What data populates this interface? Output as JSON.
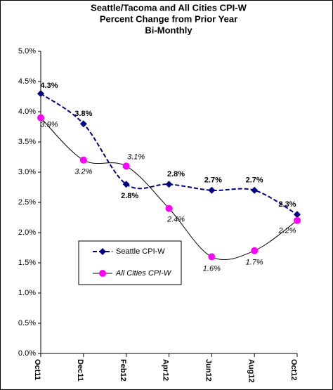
{
  "chart_data": {
    "type": "line",
    "title": [
      "Seattle/Tacoma and All Cities CPI-W",
      "Percent Change from Prior Year",
      "Bi-Monthly"
    ],
    "categories": [
      "Oct11",
      "Dec11",
      "Feb12",
      "Apr12",
      "Jun12",
      "Aug12",
      "Oct12"
    ],
    "series": [
      {
        "name": "Seattle CPI-W",
        "color": "#000080",
        "values": [
          4.3,
          3.8,
          2.8,
          2.8,
          2.7,
          2.7,
          2.3
        ],
        "value_labels": [
          "4.3%",
          "3.8%",
          "2.8%",
          "2.8%",
          "2.7%",
          "2.7%",
          "2.3%"
        ]
      },
      {
        "name": "All Cities CPI-W",
        "color": "#ff00ff",
        "values": [
          3.9,
          3.2,
          3.1,
          2.4,
          1.6,
          1.7,
          2.2
        ],
        "value_labels": [
          "3.9%",
          "3.2%",
          "3.1%",
          "2.4%",
          "1.6%",
          "1.7%",
          "2.2%"
        ]
      }
    ],
    "ylim": [
      0,
      5
    ],
    "yticks": [
      {
        "value": 0,
        "label": "0.0%"
      },
      {
        "value": 0.5,
        "label": "0.5%"
      },
      {
        "value": 1,
        "label": "1.0%"
      },
      {
        "value": 1.5,
        "label": "1.5%"
      },
      {
        "value": 2,
        "label": "2.0%"
      },
      {
        "value": 2.5,
        "label": "2.5%"
      },
      {
        "value": 3,
        "label": "3.0%"
      },
      {
        "value": 3.5,
        "label": "3.5%"
      },
      {
        "value": 4,
        "label": "4.0%"
      },
      {
        "value": 4.5,
        "label": "4.5%"
      },
      {
        "value": 5,
        "label": "5.0%"
      }
    ],
    "grid": false
  }
}
